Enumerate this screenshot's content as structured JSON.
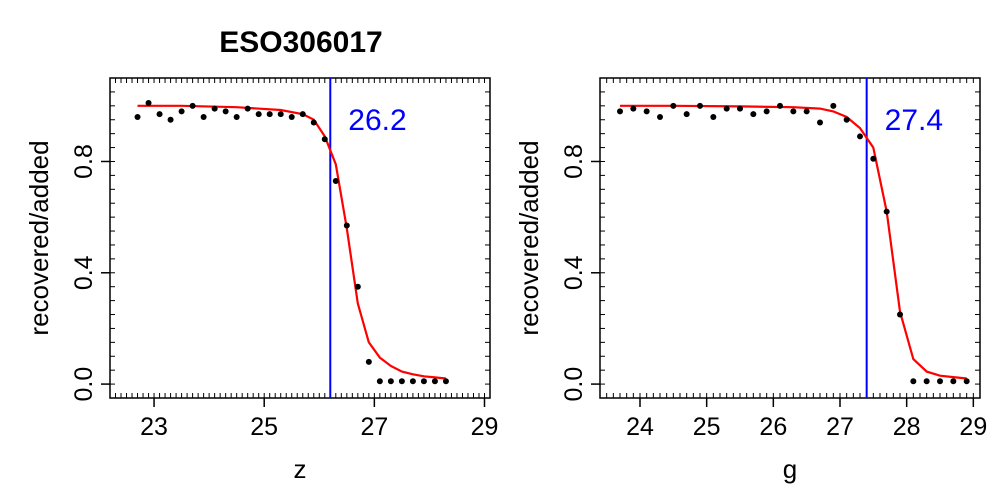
{
  "figure_title": "ESO306017",
  "colors": {
    "points": "#000000",
    "fit": "#ff0000",
    "cutoff": "#0000ff",
    "frame": "#000000"
  },
  "chart_data": [
    {
      "type": "scatter",
      "title": "ESO306017",
      "xlabel": "z",
      "ylabel": "recovered/added",
      "xlim": [
        22.2,
        29.1
      ],
      "ylim": [
        -0.05,
        1.1
      ],
      "xticks": [
        23,
        25,
        27,
        29
      ],
      "yticks": [
        0.0,
        0.4,
        0.8
      ],
      "ytick_labels": [
        "0.0",
        "0.4",
        "0.8"
      ],
      "cutoff": {
        "x": 26.2,
        "label": "26.2"
      },
      "points": {
        "x": [
          22.7,
          22.9,
          23.1,
          23.3,
          23.5,
          23.7,
          23.9,
          24.1,
          24.3,
          24.5,
          24.7,
          24.9,
          25.1,
          25.3,
          25.5,
          25.7,
          25.9,
          26.1,
          26.3,
          26.5,
          26.7,
          26.9,
          27.1,
          27.3,
          27.5,
          27.7,
          27.9,
          28.1,
          28.3
        ],
        "y": [
          0.96,
          1.01,
          0.97,
          0.95,
          0.98,
          1.0,
          0.96,
          0.99,
          0.98,
          0.96,
          0.99,
          0.97,
          0.97,
          0.97,
          0.96,
          0.97,
          0.94,
          0.88,
          0.73,
          0.57,
          0.35,
          0.08,
          0.01,
          0.01,
          0.01,
          0.01,
          0.01,
          0.01,
          0.01
        ]
      },
      "fit": {
        "x": [
          22.7,
          23.5,
          24.5,
          25.3,
          25.7,
          25.9,
          26.1,
          26.3,
          26.5,
          26.7,
          26.9,
          27.1,
          27.3,
          27.5,
          27.7,
          27.9,
          28.1,
          28.3
        ],
        "y": [
          1.0,
          1.0,
          0.995,
          0.985,
          0.97,
          0.95,
          0.89,
          0.79,
          0.56,
          0.29,
          0.15,
          0.095,
          0.065,
          0.045,
          0.035,
          0.028,
          0.024,
          0.02
        ]
      }
    },
    {
      "type": "scatter",
      "xlabel": "g",
      "ylabel": "recovered/added",
      "xlim": [
        23.4,
        29.1
      ],
      "ylim": [
        -0.05,
        1.1
      ],
      "xticks": [
        24,
        25,
        26,
        27,
        28,
        29
      ],
      "yticks": [
        0.0,
        0.4,
        0.8
      ],
      "ytick_labels": [
        "0.0",
        "0.4",
        "0.8"
      ],
      "cutoff": {
        "x": 27.4,
        "label": "27.4"
      },
      "points": {
        "x": [
          23.7,
          23.9,
          24.1,
          24.3,
          24.5,
          24.7,
          24.9,
          25.1,
          25.3,
          25.5,
          25.7,
          25.9,
          26.1,
          26.3,
          26.5,
          26.7,
          26.9,
          27.1,
          27.3,
          27.5,
          27.7,
          27.9,
          28.1,
          28.3,
          28.5,
          28.7,
          28.9
        ],
        "y": [
          0.98,
          0.99,
          0.98,
          0.96,
          1.0,
          0.97,
          1.0,
          0.96,
          0.99,
          0.99,
          0.97,
          0.98,
          1.0,
          0.98,
          0.98,
          0.94,
          1.0,
          0.95,
          0.89,
          0.81,
          0.62,
          0.25,
          0.01,
          0.01,
          0.01,
          0.01,
          0.01
        ]
      },
      "fit": {
        "x": [
          23.7,
          24.5,
          25.5,
          26.3,
          26.7,
          26.9,
          27.1,
          27.3,
          27.5,
          27.7,
          27.9,
          28.1,
          28.3,
          28.5,
          28.7,
          28.9
        ],
        "y": [
          1.0,
          1.0,
          0.998,
          0.995,
          0.99,
          0.98,
          0.96,
          0.92,
          0.85,
          0.62,
          0.26,
          0.09,
          0.045,
          0.03,
          0.025,
          0.02
        ]
      }
    }
  ]
}
